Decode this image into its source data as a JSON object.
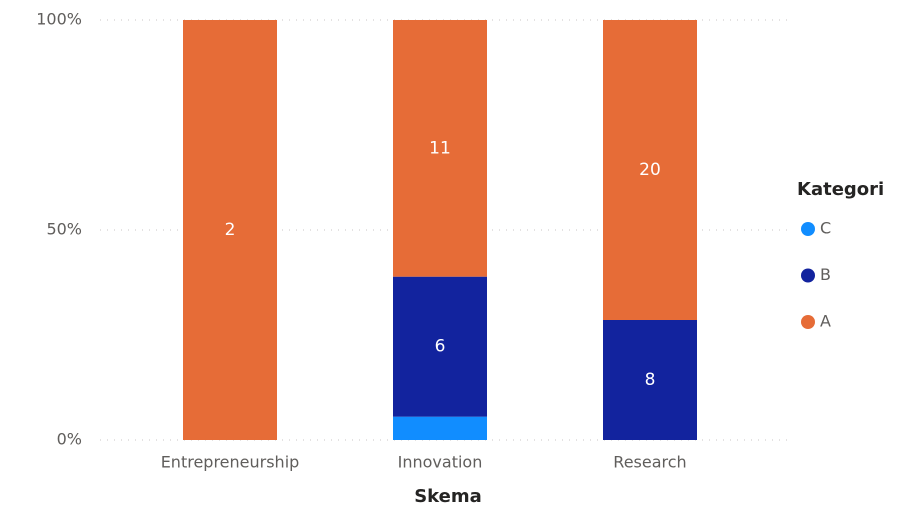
{
  "chart_data": {
    "type": "bar",
    "stack": "percent",
    "x_label": "Skema",
    "categories": [
      "Entrepreneurship",
      "Innovation",
      "Research"
    ],
    "legend_title": "Kategori",
    "legend_position": "right",
    "series": [
      {
        "name": "C",
        "color": "#118DFF",
        "values": [
          null,
          1,
          null
        ]
      },
      {
        "name": "B",
        "color": "#12239E",
        "values": [
          null,
          6,
          8
        ]
      },
      {
        "name": "A",
        "color": "#E66C37",
        "values": [
          2,
          11,
          20
        ]
      }
    ],
    "ylim": [
      0,
      100
    ],
    "yticks": [
      {
        "value": 0,
        "label": "0%"
      },
      {
        "value": 50,
        "label": "50%"
      },
      {
        "value": 100,
        "label": "100%"
      }
    ],
    "grid": true
  }
}
